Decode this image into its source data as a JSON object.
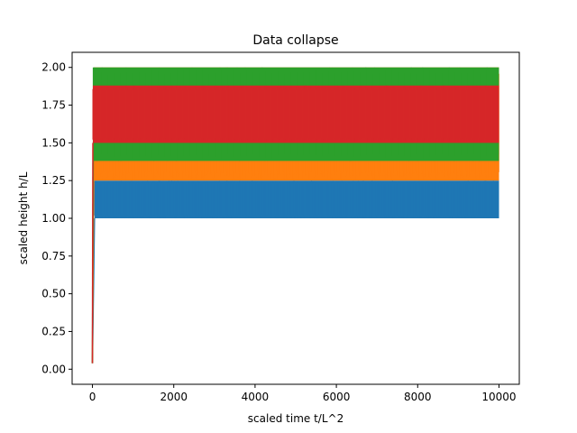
{
  "chart_data": {
    "type": "line",
    "title": "Data collapse",
    "xlabel": "scaled time t/L^2",
    "ylabel": "scaled height h/L",
    "xlim": [
      -500,
      10500
    ],
    "ylim": [
      -0.1,
      2.1
    ],
    "xticks": [
      0,
      2000,
      4000,
      6000,
      8000,
      10000
    ],
    "yticks": [
      0.0,
      0.25,
      0.5,
      0.75,
      1.0,
      1.25,
      1.5,
      1.75,
      2.0
    ],
    "xtick_labels": [
      "0",
      "2000",
      "4000",
      "6000",
      "8000",
      "10000"
    ],
    "ytick_labels": [
      "0.00",
      "0.25",
      "0.50",
      "0.75",
      "1.00",
      "1.25",
      "1.50",
      "1.75",
      "2.00"
    ],
    "grid": false,
    "series": [
      {
        "color": "#1f77b4",
        "x_range": [
          0,
          10000
        ],
        "ramp_end_x": 50,
        "start_y": 0.04,
        "band": [
          1.0,
          1.25
        ]
      },
      {
        "color": "#ff7f0e",
        "x_range": [
          0,
          10000
        ],
        "ramp_end_x": 30,
        "start_y": 0.04,
        "band": [
          1.25,
          2.0
        ]
      },
      {
        "color": "#2ca02c",
        "x_range": [
          0,
          10000
        ],
        "ramp_end_x": 20,
        "start_y": 0.04,
        "band": [
          1.38,
          2.0
        ]
      },
      {
        "color": "#d62728",
        "x_range": [
          0,
          10000
        ],
        "ramp_end_x": 10,
        "start_y": 0.04,
        "band": [
          1.5,
          1.88
        ]
      }
    ]
  }
}
